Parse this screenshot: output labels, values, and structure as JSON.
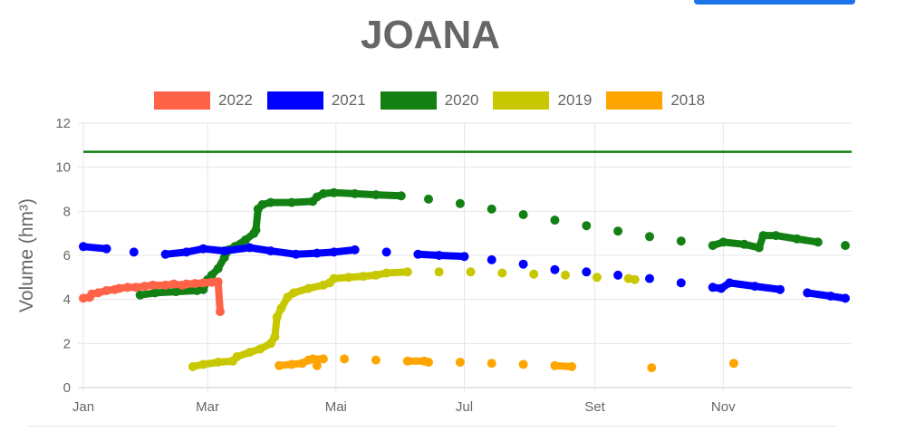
{
  "page": {
    "top_button_color": "#1a73e8"
  },
  "chart_data": {
    "type": "scatter",
    "title": "JOANA",
    "ylabel": "Volume (hm³)",
    "xlabel": "",
    "ylim": [
      0,
      12
    ],
    "y_ticks": [
      "0",
      "2",
      "4",
      "6",
      "8",
      "10",
      "12"
    ],
    "x_ticks": [
      {
        "label": "Jan",
        "day": 1
      },
      {
        "label": "Mar",
        "day": 60
      },
      {
        "label": "Mai",
        "day": 121
      },
      {
        "label": "Jul",
        "day": 182
      },
      {
        "label": "Set",
        "day": 244
      },
      {
        "label": "Nov",
        "day": 305
      }
    ],
    "grid": true,
    "legend_position": "top",
    "reference_line": {
      "y": 10.7,
      "color": "#138013"
    },
    "series": [
      {
        "name": "2022",
        "color": "#ff6347",
        "points": [
          [
            1,
            4.05
          ],
          [
            4,
            4.1
          ],
          [
            5,
            4.25
          ],
          [
            8,
            4.3
          ],
          [
            12,
            4.4
          ],
          [
            16,
            4.45
          ],
          [
            18,
            4.5
          ],
          [
            22,
            4.55
          ],
          [
            26,
            4.55
          ],
          [
            30,
            4.6
          ],
          [
            34,
            4.65
          ],
          [
            40,
            4.65
          ],
          [
            44,
            4.7
          ],
          [
            48,
            4.65
          ],
          [
            50,
            4.7
          ],
          [
            54,
            4.72
          ],
          [
            58,
            4.75
          ],
          [
            62,
            4.78
          ],
          [
            65,
            4.8
          ],
          [
            66,
            3.45
          ]
        ]
      },
      {
        "name": "2021",
        "color": "#0000ff",
        "points": [
          [
            1,
            6.4
          ],
          [
            12,
            6.3
          ],
          [
            25,
            6.15
          ],
          [
            40,
            6.05
          ],
          [
            50,
            6.15
          ],
          [
            58,
            6.3
          ],
          [
            68,
            6.2
          ],
          [
            80,
            6.35
          ],
          [
            90,
            6.2
          ],
          [
            102,
            6.05
          ],
          [
            112,
            6.1
          ],
          [
            120,
            6.15
          ],
          [
            130,
            6.25
          ],
          [
            145,
            6.15
          ],
          [
            160,
            6.05
          ],
          [
            170,
            6.0
          ],
          [
            182,
            5.95
          ],
          [
            195,
            5.8
          ],
          [
            210,
            5.6
          ],
          [
            225,
            5.35
          ],
          [
            240,
            5.25
          ],
          [
            255,
            5.1
          ],
          [
            270,
            4.95
          ],
          [
            285,
            4.75
          ],
          [
            300,
            4.55
          ],
          [
            304,
            4.5
          ],
          [
            308,
            4.75
          ],
          [
            320,
            4.6
          ],
          [
            332,
            4.45
          ],
          [
            345,
            4.3
          ],
          [
            356,
            4.15
          ],
          [
            363,
            4.05
          ]
        ]
      },
      {
        "name": "2020",
        "color": "#138013",
        "points": [
          [
            28,
            4.2
          ],
          [
            35,
            4.3
          ],
          [
            45,
            4.35
          ],
          [
            55,
            4.4
          ],
          [
            58,
            4.45
          ],
          [
            60,
            4.9
          ],
          [
            62,
            5.1
          ],
          [
            65,
            5.4
          ],
          [
            68,
            5.9
          ],
          [
            70,
            6.25
          ],
          [
            73,
            6.4
          ],
          [
            78,
            6.7
          ],
          [
            82,
            7.0
          ],
          [
            83,
            7.15
          ],
          [
            84,
            8.1
          ],
          [
            86,
            8.3
          ],
          [
            90,
            8.4
          ],
          [
            100,
            8.4
          ],
          [
            110,
            8.45
          ],
          [
            112,
            8.65
          ],
          [
            115,
            8.8
          ],
          [
            120,
            8.85
          ],
          [
            130,
            8.8
          ],
          [
            140,
            8.75
          ],
          [
            152,
            8.7
          ],
          [
            165,
            8.55
          ],
          [
            180,
            8.35
          ],
          [
            195,
            8.1
          ],
          [
            210,
            7.85
          ],
          [
            225,
            7.6
          ],
          [
            240,
            7.35
          ],
          [
            255,
            7.1
          ],
          [
            270,
            6.85
          ],
          [
            285,
            6.65
          ],
          [
            300,
            6.45
          ],
          [
            305,
            6.6
          ],
          [
            315,
            6.5
          ],
          [
            322,
            6.35
          ],
          [
            324,
            6.9
          ],
          [
            330,
            6.9
          ],
          [
            340,
            6.75
          ],
          [
            350,
            6.6
          ],
          [
            363,
            6.45
          ]
        ]
      },
      {
        "name": "2019",
        "color": "#c8c800",
        "points": [
          [
            53,
            0.95
          ],
          [
            58,
            1.05
          ],
          [
            65,
            1.15
          ],
          [
            72,
            1.2
          ],
          [
            74,
            1.4
          ],
          [
            80,
            1.6
          ],
          [
            85,
            1.75
          ],
          [
            90,
            2.0
          ],
          [
            92,
            2.3
          ],
          [
            93,
            3.2
          ],
          [
            95,
            3.6
          ],
          [
            98,
            4.1
          ],
          [
            101,
            4.3
          ],
          [
            108,
            4.5
          ],
          [
            115,
            4.65
          ],
          [
            118,
            4.75
          ],
          [
            120,
            4.95
          ],
          [
            127,
            5.0
          ],
          [
            134,
            5.05
          ],
          [
            140,
            5.1
          ],
          [
            145,
            5.2
          ],
          [
            155,
            5.25
          ],
          [
            170,
            5.25
          ],
          [
            185,
            5.25
          ],
          [
            200,
            5.2
          ],
          [
            215,
            5.15
          ],
          [
            230,
            5.1
          ],
          [
            245,
            5.0
          ],
          [
            260,
            4.95
          ],
          [
            263,
            4.9
          ]
        ]
      },
      {
        "name": "2018",
        "color": "#ffa500",
        "points": [
          [
            94,
            1.0
          ],
          [
            100,
            1.05
          ],
          [
            105,
            1.1
          ],
          [
            108,
            1.25
          ],
          [
            110,
            1.3
          ],
          [
            115,
            1.3
          ],
          [
            112,
            1.0
          ],
          [
            125,
            1.3
          ],
          [
            140,
            1.25
          ],
          [
            155,
            1.2
          ],
          [
            163,
            1.2
          ],
          [
            165,
            1.15
          ],
          [
            180,
            1.15
          ],
          [
            195,
            1.1
          ],
          [
            210,
            1.05
          ],
          [
            225,
            1.0
          ],
          [
            233,
            0.95
          ],
          [
            271,
            0.9
          ],
          [
            310,
            1.1
          ]
        ]
      }
    ]
  }
}
